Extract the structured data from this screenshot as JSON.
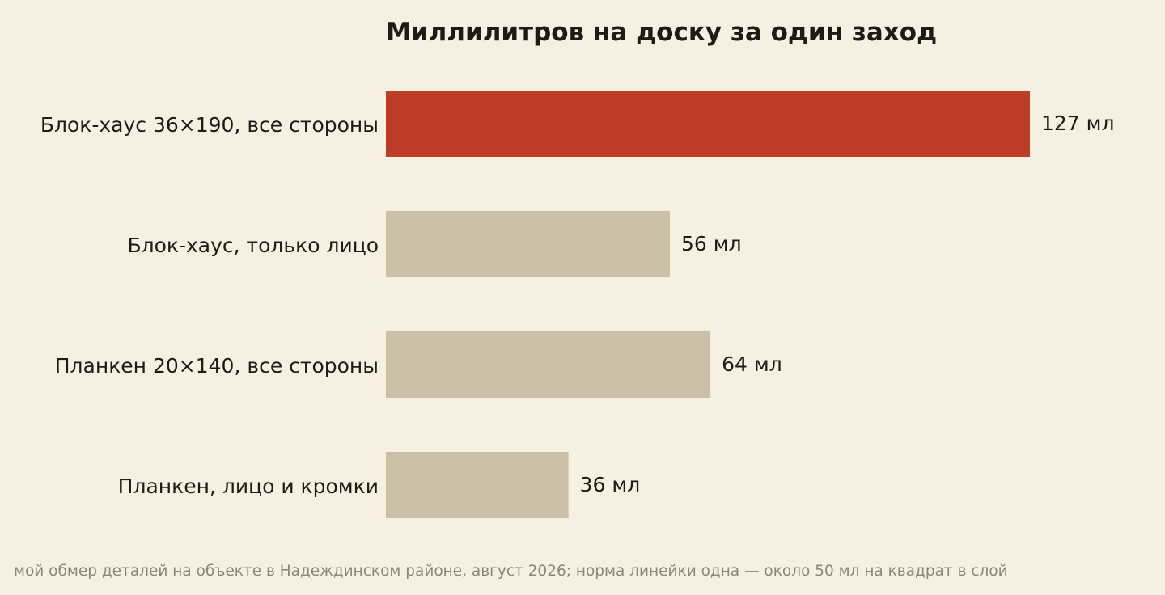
{
  "chart_data": {
    "type": "bar",
    "orientation": "horizontal",
    "title": "Миллилитров на доску за один заход",
    "categories": [
      "Блок-хаус 36×190, все стороны",
      "Блок-хаус, только лицо",
      "Планкен 20×140, все стороны",
      "Планкен, лицо и кромки"
    ],
    "values": [
      127,
      56,
      64,
      36
    ],
    "value_labels": [
      "127 мл",
      "56 мл",
      "64 мл",
      "36 мл"
    ],
    "xlim": [
      0,
      127
    ],
    "grid": false,
    "highlight_index": 0,
    "colors": {
      "highlight": "#bb3d27",
      "default": "#c9c0a7"
    }
  },
  "footnote": "мой обмер деталей на объекте в Надеждинском районе, август 2026; норма линейки одна — около 50 мл на квадрат в слой"
}
